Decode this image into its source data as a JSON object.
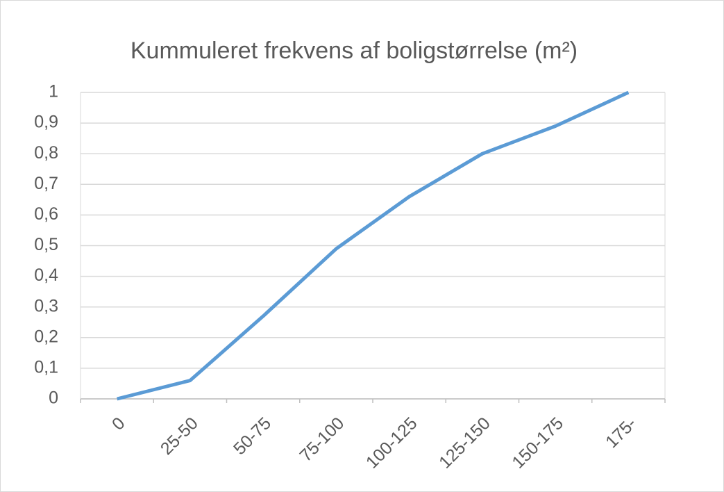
{
  "chart_data": {
    "type": "line",
    "title": "Kummuleret frekvens af boligstørrelse (m²)",
    "categories": [
      "0",
      "25-50",
      "50-75",
      "75-100",
      "100-125",
      "125-150",
      "150-175",
      "175-"
    ],
    "values": [
      0,
      0.06,
      0.27,
      0.49,
      0.66,
      0.8,
      0.89,
      1
    ],
    "color": "#5b9bd5",
    "ylim": [
      0,
      1
    ],
    "yticks": [
      0,
      {
        "value": 0.1,
        "label": "0,1"
      },
      {
        "value": 0.2,
        "label": "0,2"
      },
      {
        "value": 0.3,
        "label": "0,3"
      },
      {
        "value": 0.4,
        "label": "0,4"
      },
      {
        "value": 0.5,
        "label": "0,5"
      },
      {
        "value": 0.6,
        "label": "0,6"
      },
      {
        "value": 0.7,
        "label": "0,7"
      },
      {
        "value": 0.8,
        "label": "0,8"
      },
      {
        "value": 0.9,
        "label": "0,9"
      },
      1
    ],
    "grid": true
  }
}
